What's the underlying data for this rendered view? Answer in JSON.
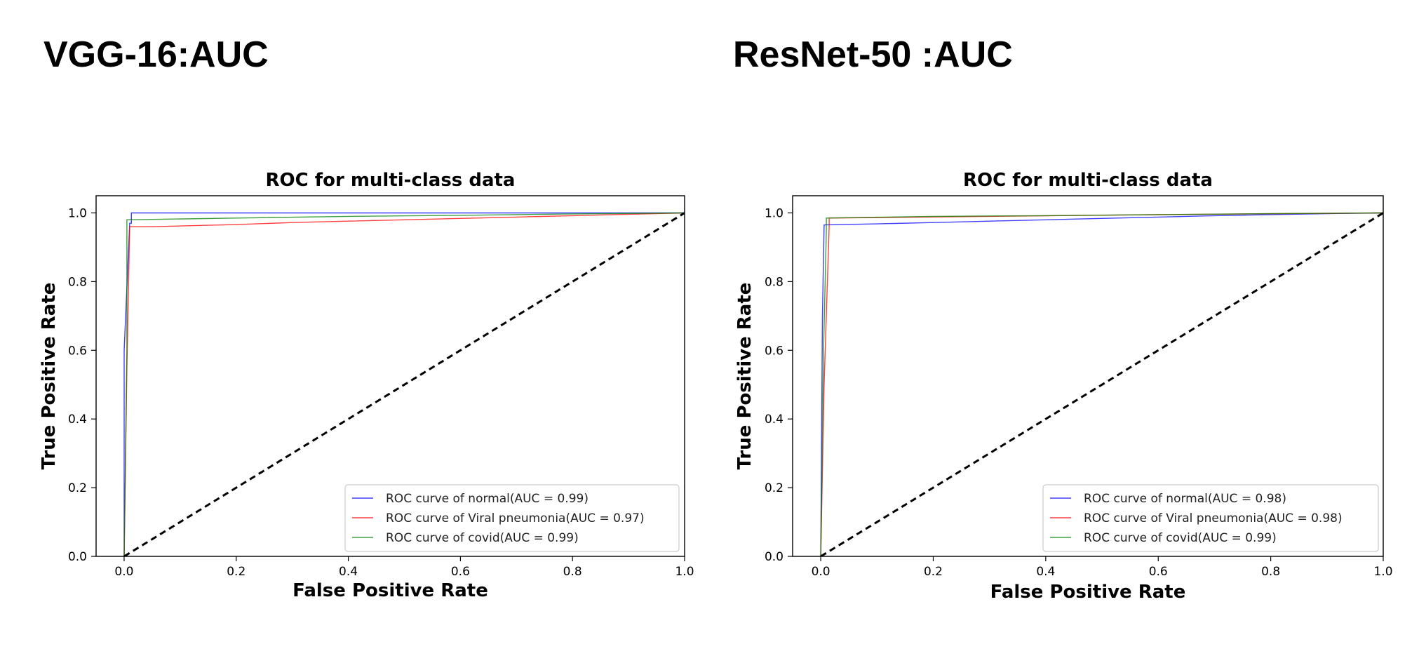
{
  "headings": {
    "left": "VGG-16:AUC",
    "right": "ResNet-50 :AUC"
  },
  "chart_data": [
    {
      "type": "line",
      "title": "ROC for multi-class data",
      "xlabel": "False Positive Rate",
      "ylabel": "True Positive Rate",
      "xlim": [
        -0.05,
        1.0
      ],
      "ylim": [
        0.0,
        1.05
      ],
      "xticks": [
        "0.0",
        "0.2",
        "0.4",
        "0.6",
        "0.8",
        "1.0"
      ],
      "yticks": [
        "0.0",
        "0.2",
        "0.4",
        "0.6",
        "0.8",
        "1.0"
      ],
      "grid": false,
      "legend_position": "lower-right",
      "series": [
        {
          "name": "ROC curve of normal(AUC = 0.99)",
          "color": "#0000ff",
          "x": [
            0.0,
            0.0,
            0.01,
            0.013,
            0.013,
            0.5,
            1.0
          ],
          "y": [
            0.0,
            0.6,
            0.97,
            0.97,
            1.0,
            1.0,
            1.0
          ]
        },
        {
          "name": "ROC curve of Viral pneumonia(AUC = 0.97)",
          "color": "#ff0000",
          "x": [
            0.0,
            0.005,
            0.01,
            0.05,
            0.1,
            0.2,
            0.3,
            0.4,
            0.5,
            0.6,
            0.7,
            0.8,
            0.9,
            1.0
          ],
          "y": [
            0.0,
            0.55,
            0.96,
            0.96,
            0.962,
            0.966,
            0.972,
            0.976,
            0.98,
            0.984,
            0.988,
            0.992,
            0.996,
            1.0
          ]
        },
        {
          "name": "ROC curve of covid(AUC = 0.99)",
          "color": "#008000",
          "x": [
            0.0,
            0.005,
            0.005,
            0.2,
            0.4,
            0.6,
            0.8,
            1.0
          ],
          "y": [
            0.0,
            0.6,
            0.98,
            0.985,
            0.99,
            0.993,
            0.997,
            1.0
          ]
        },
        {
          "name": "",
          "color": "#000000",
          "dashed": true,
          "x": [
            0.0,
            1.0
          ],
          "y": [
            0.0,
            1.0
          ]
        }
      ]
    },
    {
      "type": "line",
      "title": "ROC for multi-class data",
      "xlabel": "False Positive Rate",
      "ylabel": "True Positive Rate",
      "xlim": [
        -0.05,
        1.0
      ],
      "ylim": [
        0.0,
        1.05
      ],
      "xticks": [
        "0.0",
        "0.2",
        "0.4",
        "0.6",
        "0.8",
        "1.0"
      ],
      "yticks": [
        "0.0",
        "0.2",
        "0.4",
        "0.6",
        "0.8",
        "1.0"
      ],
      "grid": false,
      "legend_position": "lower-right",
      "series": [
        {
          "name": "ROC curve of normal(AUC = 0.98)",
          "color": "#0000ff",
          "x": [
            0.0,
            0.003,
            0.006,
            0.1,
            0.2,
            0.3,
            0.4,
            0.5,
            0.6,
            0.7,
            0.8,
            0.9,
            1.0
          ],
          "y": [
            0.0,
            0.7,
            0.965,
            0.968,
            0.972,
            0.976,
            0.98,
            0.984,
            0.988,
            0.992,
            0.995,
            0.998,
            1.0
          ]
        },
        {
          "name": "ROC curve of Viral pneumonia(AUC = 0.98)",
          "color": "#ff0000",
          "x": [
            0.0,
            0.006,
            0.015,
            0.015,
            0.3,
            0.6,
            1.0
          ],
          "y": [
            0.0,
            0.5,
            0.96,
            0.985,
            0.99,
            0.995,
            1.0
          ]
        },
        {
          "name": "ROC curve of covid(AUC = 0.99)",
          "color": "#008000",
          "x": [
            0.0,
            0.005,
            0.01,
            0.01,
            0.2,
            0.4,
            0.6,
            0.8,
            1.0
          ],
          "y": [
            0.0,
            0.6,
            0.95,
            0.985,
            0.99,
            0.992,
            0.995,
            0.998,
            1.0
          ]
        },
        {
          "name": "",
          "color": "#000000",
          "dashed": true,
          "x": [
            0.0,
            1.0
          ],
          "y": [
            0.0,
            1.0
          ]
        }
      ]
    }
  ]
}
